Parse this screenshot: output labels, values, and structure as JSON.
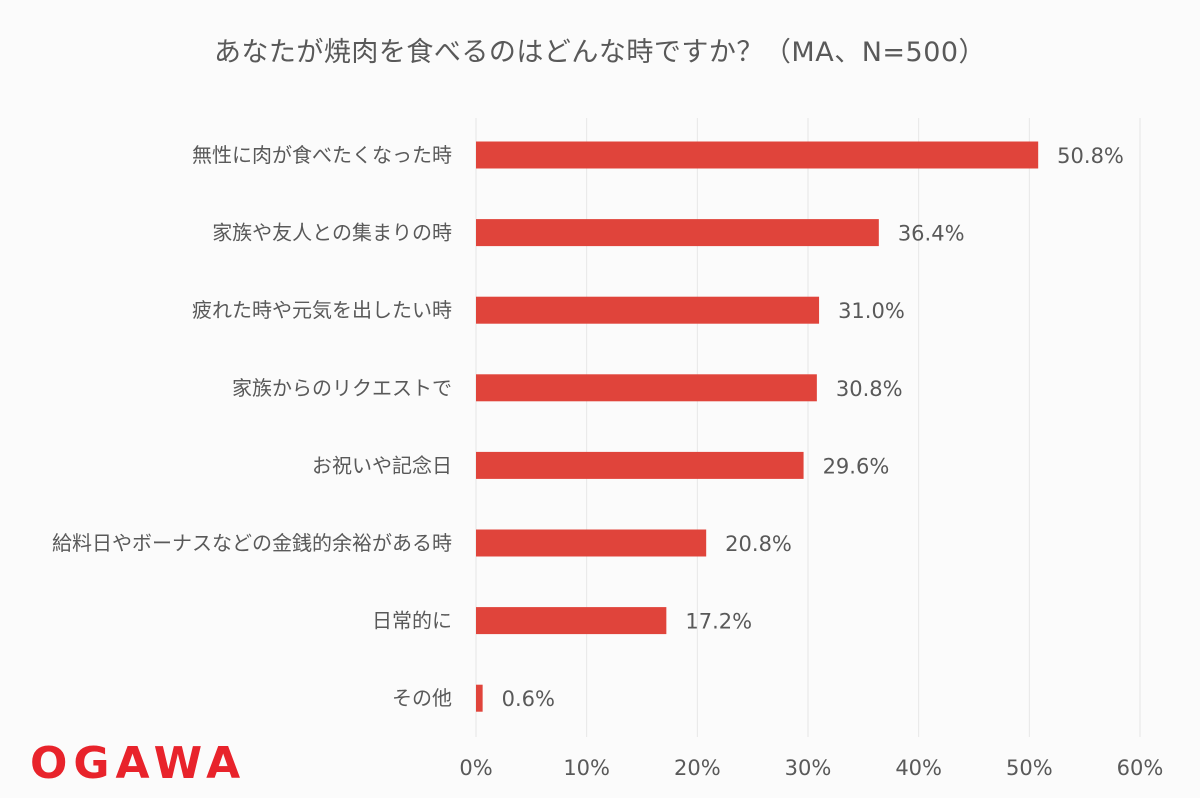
{
  "colors": {
    "bar": "#e0443b",
    "text": "#595959",
    "grid": "#e6e6e6",
    "logo": "#e8232b"
  },
  "logo": {
    "text": "OGAWA"
  },
  "chart_data": {
    "type": "bar",
    "orientation": "horizontal",
    "title": "あなたが焼肉を食べるのはどんな時ですか？（MA、N=500）",
    "categories": [
      "無性に肉が食べたくなった時",
      "家族や友人との集まりの時",
      "疲れた時や元気を出したい時",
      "家族からのリクエストで",
      "お祝いや記念日",
      "給料日やボーナスなどの金銭的余裕がある時",
      "日常的に",
      "その他"
    ],
    "values": [
      50.8,
      36.4,
      31.0,
      30.8,
      29.6,
      20.8,
      17.2,
      0.6
    ],
    "value_labels": [
      "50.8%",
      "36.4%",
      "31.0%",
      "30.8%",
      "29.6%",
      "20.8%",
      "17.2%",
      "0.6%"
    ],
    "xlim": [
      0,
      60
    ],
    "xticks": [
      0,
      10,
      20,
      30,
      40,
      50,
      60
    ],
    "xtick_labels": [
      "0%",
      "10%",
      "20%",
      "30%",
      "40%",
      "50%",
      "60%"
    ],
    "grid": true,
    "legend": "none"
  }
}
